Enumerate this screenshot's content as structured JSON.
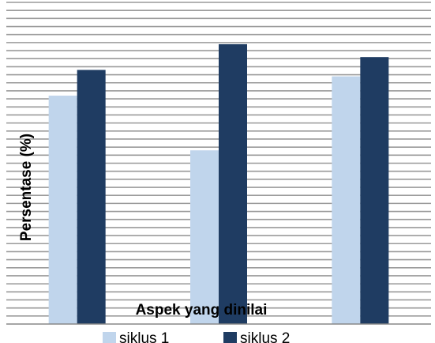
{
  "chart_data": {
    "type": "bar",
    "title": "",
    "xlabel": "Aspek yang dinilai",
    "ylabel": "Persentase (%)",
    "categories": [
      "",
      "",
      ""
    ],
    "series": [
      {
        "name": "siklus 1",
        "color": "#c0d5ec",
        "values": [
          71,
          54,
          77
        ]
      },
      {
        "name": "siklus 2",
        "color": "#1f3c62",
        "values": [
          79,
          87,
          83
        ]
      }
    ],
    "ylim": [
      0,
      100
    ],
    "grid": true,
    "legend_position": "bottom"
  }
}
